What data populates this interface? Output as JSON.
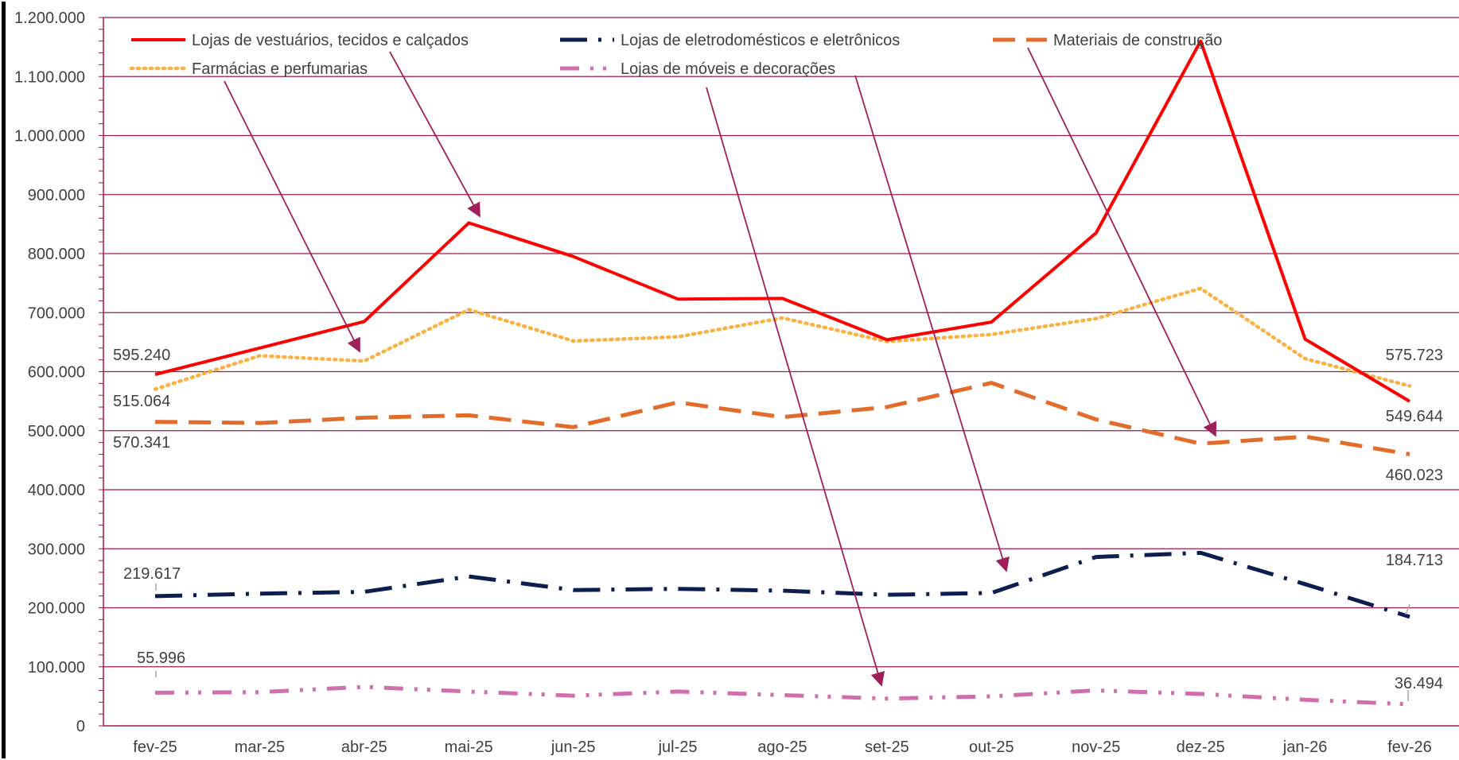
{
  "chart_data": {
    "type": "line",
    "title": "",
    "xlabel": "",
    "ylabel": "",
    "ylim": [
      0,
      1200000
    ],
    "y_ticks": [
      "0",
      "100.000",
      "200.000",
      "300.000",
      "400.000",
      "500.000",
      "600.000",
      "700.000",
      "800.000",
      "900.000",
      "1.000.000",
      "1.100.000",
      "1.200.000"
    ],
    "grid": true,
    "legend_position": "top",
    "categories": [
      "fev-25",
      "mar-25",
      "abr-25",
      "mai-25",
      "jun-25",
      "jul-25",
      "ago-25",
      "set-25",
      "out-25",
      "nov-25",
      "dez-25",
      "jan-26",
      "fev-26"
    ],
    "series": [
      {
        "name": "Lojas de vestuários, tecidos e calçados",
        "color": "#ff0000",
        "style": "solid",
        "values": [
          595240,
          640000,
          685000,
          852000,
          795000,
          723000,
          724000,
          654000,
          684000,
          835000,
          1160000,
          655000,
          549644
        ],
        "labels": {
          "first": "595.240",
          "last": "549.644"
        }
      },
      {
        "name": "Lojas de eletrodomésticos e eletrônicos",
        "color": "#0b1e4f",
        "style": "dashdot",
        "values": [
          219617,
          224000,
          227000,
          253000,
          230000,
          232000,
          229000,
          222000,
          225000,
          286000,
          293000,
          240000,
          184713
        ],
        "labels": {
          "first": "219.617",
          "last": "184.713"
        }
      },
      {
        "name": "Materiais de  construção",
        "color": "#e46c2a",
        "style": "dash",
        "values": [
          515064,
          513000,
          522000,
          526000,
          506000,
          548000,
          523000,
          540000,
          581000,
          519000,
          478000,
          490000,
          460023
        ],
        "labels": {
          "first": "515.064",
          "last": "460.023"
        }
      },
      {
        "name": "Farmácias e perfumarias",
        "color": "#fbb040",
        "style": "dotted",
        "values": [
          570341,
          627000,
          618000,
          705000,
          652000,
          659000,
          691000,
          651000,
          663000,
          690000,
          741000,
          622000,
          575723
        ],
        "labels": {
          "first": "570.341",
          "last": "575.723"
        }
      },
      {
        "name": "Lojas de móveis e decorações",
        "color": "#d16fae",
        "style": "dashdotdot",
        "values": [
          55996,
          57000,
          66000,
          58000,
          51000,
          58000,
          52000,
          46000,
          50000,
          60000,
          54000,
          44000,
          36494
        ],
        "labels": {
          "first": "55.996",
          "last": "36.494"
        }
      }
    ]
  }
}
